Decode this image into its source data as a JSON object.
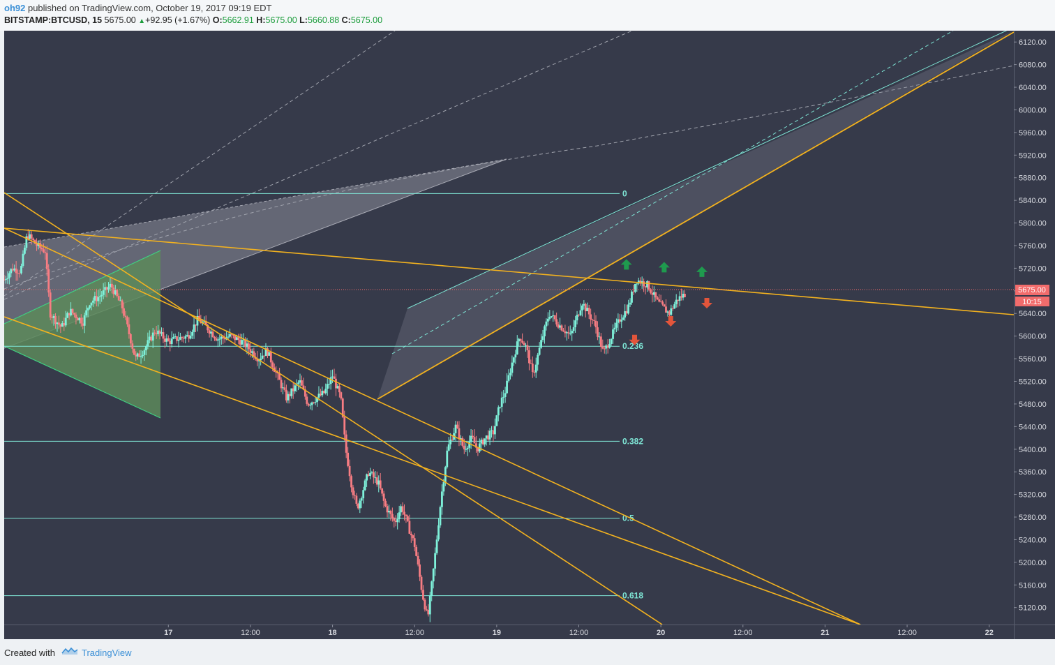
{
  "header": {
    "user": "oh92",
    "published": "published on TradingView.com, October 19, 2017 09:19 EDT",
    "symbol": "BITSTAMP:BTCUSD, 15",
    "last": "5675.00",
    "change": "+92.95 (+1.67%)",
    "o_label": "O:",
    "o_value": "5662.91",
    "h_label": "H:",
    "h_value": "5675.00",
    "l_label": "L:",
    "l_value": "5660.88",
    "c_value": "5675.00"
  },
  "footer": {
    "created_with": "Created with",
    "brand": "TradingView"
  },
  "colors": {
    "background": "#363a4a",
    "up": "#7ff2db",
    "down": "#f87d83",
    "trend": "#f3b21f",
    "fib": "#7fe6d6",
    "price_tag": "#f26c6c"
  },
  "chart_data": {
    "type": "candlestick",
    "symbol": "BITSTAMP:BTCUSD",
    "interval": "15",
    "ylim": [
      5090,
      6140
    ],
    "y_ticks": [
      "6120.00",
      "6080.00",
      "6040.00",
      "6000.00",
      "5960.00",
      "5920.00",
      "5880.00",
      "5840.00",
      "5800.00",
      "5760.00",
      "5720.00",
      "5680.00",
      "5640.00",
      "5600.00",
      "5560.00",
      "5520.00",
      "5480.00",
      "5440.00",
      "5400.00",
      "5360.00",
      "5320.00",
      "5280.00",
      "5240.00",
      "5200.00",
      "5160.00",
      "5120.00"
    ],
    "x_range": [
      16.0,
      22.15
    ],
    "x_ticks": [
      {
        "label": "17",
        "t": 17.0
      },
      {
        "label": "12:00",
        "t": 17.5
      },
      {
        "label": "18",
        "t": 18.0
      },
      {
        "label": "12:00",
        "t": 18.5
      },
      {
        "label": "19",
        "t": 19.0
      },
      {
        "label": "12:00",
        "t": 19.5
      },
      {
        "label": "20",
        "t": 20.0
      },
      {
        "label": "12:00",
        "t": 20.5
      },
      {
        "label": "21",
        "t": 21.0
      },
      {
        "label": "12:00",
        "t": 21.5
      },
      {
        "label": "22",
        "t": 22.0
      }
    ],
    "price_tag": "5675.00",
    "countdown": "10:15",
    "price_path": [
      [
        16.0,
        5700
      ],
      [
        16.05,
        5720
      ],
      [
        16.1,
        5715
      ],
      [
        16.14,
        5780
      ],
      [
        16.2,
        5760
      ],
      [
        16.25,
        5750
      ],
      [
        16.28,
        5640
      ],
      [
        16.35,
        5615
      ],
      [
        16.4,
        5645
      ],
      [
        16.48,
        5625
      ],
      [
        16.52,
        5660
      ],
      [
        16.58,
        5670
      ],
      [
        16.65,
        5690
      ],
      [
        16.72,
        5650
      ],
      [
        16.8,
        5560
      ],
      [
        16.85,
        5575
      ],
      [
        16.92,
        5610
      ],
      [
        17.0,
        5590
      ],
      [
        17.05,
        5595
      ],
      [
        17.12,
        5600
      ],
      [
        17.18,
        5630
      ],
      [
        17.22,
        5620
      ],
      [
        17.3,
        5595
      ],
      [
        17.38,
        5600
      ],
      [
        17.45,
        5590
      ],
      [
        17.55,
        5560
      ],
      [
        17.6,
        5575
      ],
      [
        17.72,
        5490
      ],
      [
        17.8,
        5520
      ],
      [
        17.85,
        5480
      ],
      [
        17.95,
        5500
      ],
      [
        18.0,
        5530
      ],
      [
        18.05,
        5490
      ],
      [
        18.08,
        5400
      ],
      [
        18.12,
        5330
      ],
      [
        18.15,
        5295
      ],
      [
        18.22,
        5360
      ],
      [
        18.28,
        5340
      ],
      [
        18.32,
        5300
      ],
      [
        18.38,
        5270
      ],
      [
        18.42,
        5300
      ],
      [
        18.46,
        5265
      ],
      [
        18.5,
        5230
      ],
      [
        18.55,
        5140
      ],
      [
        18.58,
        5100
      ],
      [
        18.62,
        5200
      ],
      [
        18.66,
        5310
      ],
      [
        18.7,
        5400
      ],
      [
        18.75,
        5440
      ],
      [
        18.8,
        5400
      ],
      [
        18.85,
        5420
      ],
      [
        18.88,
        5400
      ],
      [
        18.93,
        5420
      ],
      [
        18.98,
        5430
      ],
      [
        19.02,
        5480
      ],
      [
        19.05,
        5500
      ],
      [
        19.1,
        5560
      ],
      [
        19.14,
        5600
      ],
      [
        19.18,
        5580
      ],
      [
        19.22,
        5530
      ],
      [
        19.28,
        5600
      ],
      [
        19.32,
        5640
      ],
      [
        19.38,
        5620
      ],
      [
        19.45,
        5600
      ],
      [
        19.52,
        5660
      ],
      [
        19.6,
        5620
      ],
      [
        19.65,
        5570
      ],
      [
        19.7,
        5600
      ],
      [
        19.75,
        5630
      ],
      [
        19.8,
        5650
      ],
      [
        19.85,
        5700
      ],
      [
        19.92,
        5690
      ],
      [
        19.98,
        5660
      ],
      [
        20.05,
        5640
      ],
      [
        20.1,
        5665
      ],
      [
        20.15,
        5675
      ]
    ],
    "fibonacci": [
      {
        "level": "0",
        "price": 5852
      },
      {
        "level": "0.236",
        "price": 5582
      },
      {
        "level": "0.382",
        "price": 5414
      },
      {
        "level": "0.5",
        "price": 5278
      },
      {
        "level": "0.618",
        "price": 5141
      }
    ],
    "arrows": [
      {
        "dir": "up",
        "t": 19.79,
        "price": 5725
      },
      {
        "dir": "up",
        "t": 20.02,
        "price": 5720
      },
      {
        "dir": "up",
        "t": 20.25,
        "price": 5712
      },
      {
        "dir": "down",
        "t": 19.84,
        "price": 5595
      },
      {
        "dir": "down",
        "t": 20.06,
        "price": 5628
      },
      {
        "dir": "down",
        "t": 20.28,
        "price": 5660
      }
    ]
  }
}
